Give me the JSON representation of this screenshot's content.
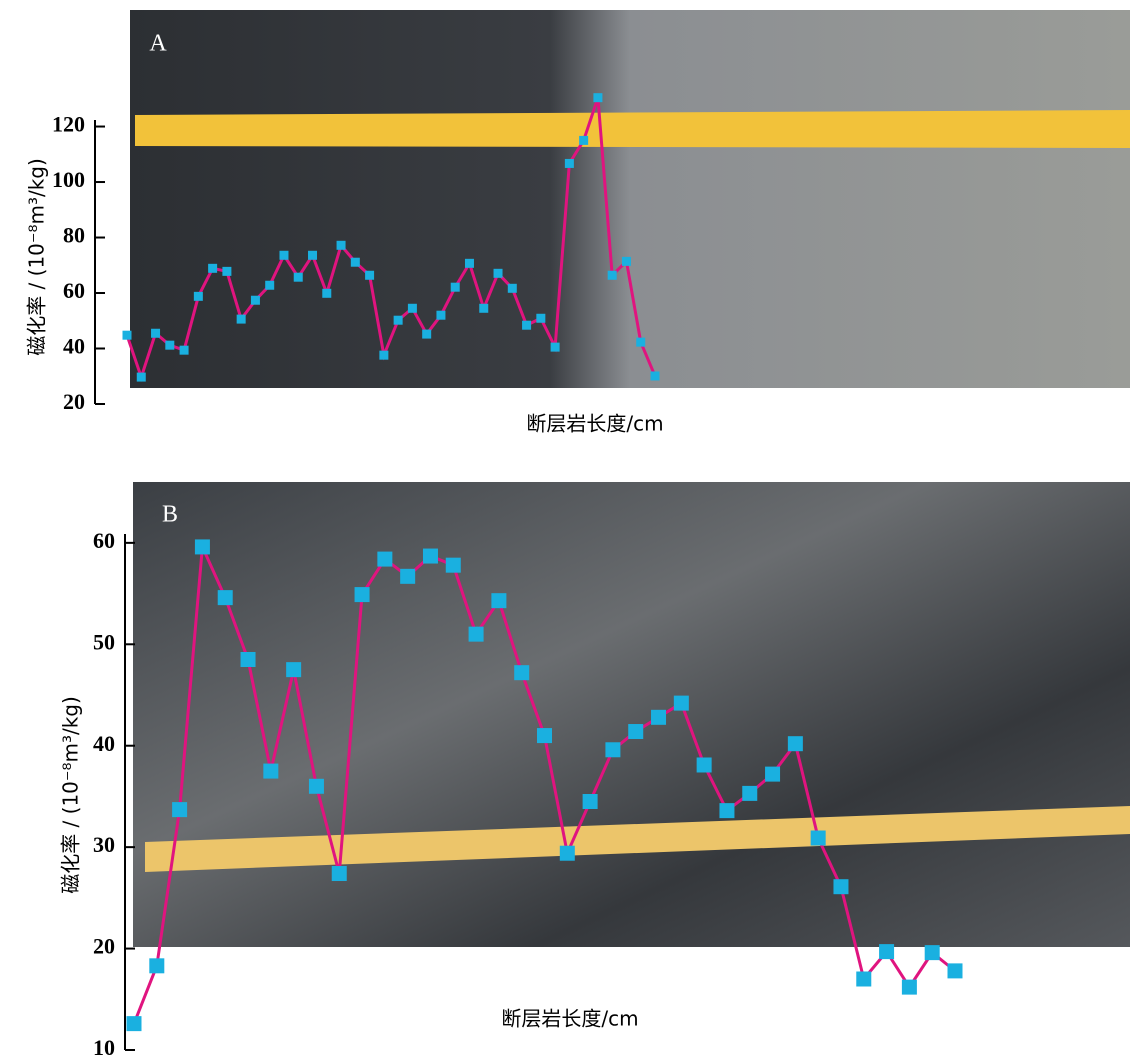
{
  "chart_data": [
    {
      "type": "line",
      "panel_label": "A",
      "y_label": "磁化率 / (10⁻⁸m³/kg)",
      "x_label": "断层岩长度/cm",
      "line_color": "#e0147f",
      "marker_color": "#1ab0e0",
      "ylim": [
        20,
        162
      ],
      "yticks": [
        20,
        40,
        60,
        80,
        100,
        120
      ],
      "values": [
        44.8,
        29.7,
        45.5,
        41.2,
        39.4,
        58.8,
        68.9,
        67.8,
        50.6,
        57.4,
        62.8,
        73.6,
        65.7,
        73.6,
        59.9,
        77.2,
        71.1,
        66.4,
        37.6,
        50.2,
        54.5,
        45.2,
        52,
        62.1,
        70.7,
        54.5,
        67.1,
        61.7,
        48.4,
        50.9,
        40.5,
        106.7,
        115,
        130.4,
        66.4,
        71.4,
        42.3,
        30.1
      ]
    },
    {
      "type": "line",
      "panel_label": "B",
      "y_label": "磁化率 / (10⁻⁸m³/kg)",
      "x_label": "断层岩长度/cm",
      "line_color": "#e0147f",
      "marker_color": "#1ab0e0",
      "ylim": [
        10,
        66
      ],
      "yticks": [
        10,
        20,
        30,
        40,
        50,
        60
      ],
      "values": [
        12.6,
        18.3,
        33.7,
        59.6,
        54.6,
        48.5,
        37.5,
        47.5,
        36,
        27.4,
        54.9,
        58.4,
        56.7,
        58.7,
        57.8,
        51,
        54.3,
        47.2,
        41,
        29.4,
        34.5,
        39.6,
        41.4,
        42.8,
        44.2,
        38.1,
        33.6,
        35.3,
        37.2,
        40.2,
        30.9,
        26.1,
        17,
        19.7,
        16.2,
        19.6,
        17.8
      ]
    }
  ]
}
